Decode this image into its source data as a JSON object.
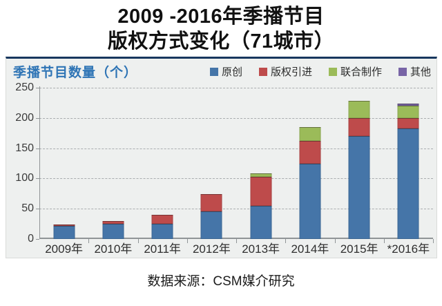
{
  "page": {
    "title_line1": "2009 -2016年季播节目",
    "title_line2": "版权方式变化（71城市）",
    "footer": "数据来源：CSM媒介研究"
  },
  "chart": {
    "header_label": "季播节目数量（个）",
    "panel_bg": "#eef0ef",
    "accent_top_border": "#17375e",
    "header_color": "#2e74b5",
    "gridline_color": "#a9adaf"
  },
  "chart_data": {
    "type": "bar",
    "stacked": true,
    "title": "季播节目数量（个）",
    "categories": [
      "2009年",
      "2010年",
      "2011年",
      "2012年",
      "2013年",
      "2014年",
      "2015年",
      "*2016年"
    ],
    "series": [
      {
        "name": "原创",
        "color": "#4575a8",
        "values": [
          22,
          25,
          25,
          46,
          55,
          125,
          170,
          183
        ]
      },
      {
        "name": "版权引进",
        "color": "#be4b4b",
        "values": [
          2,
          5,
          15,
          28,
          48,
          37,
          30,
          17
        ]
      },
      {
        "name": "联合制作",
        "color": "#9bbb59",
        "values": [
          0,
          0,
          0,
          0,
          5,
          23,
          28,
          20
        ]
      },
      {
        "name": "其他",
        "color": "#7864a6",
        "values": [
          0,
          0,
          0,
          0,
          0,
          0,
          0,
          4
        ]
      }
    ],
    "totals": [
      24,
      30,
      40,
      74,
      108,
      185,
      228,
      224
    ],
    "ylim": [
      0,
      250
    ],
    "yticks": [
      0,
      50,
      100,
      150,
      200,
      250
    ],
    "ylabel": "季播节目数量（个）",
    "xlabel": "",
    "grid": "horizontal-dashed",
    "legend_position": "top-right"
  }
}
